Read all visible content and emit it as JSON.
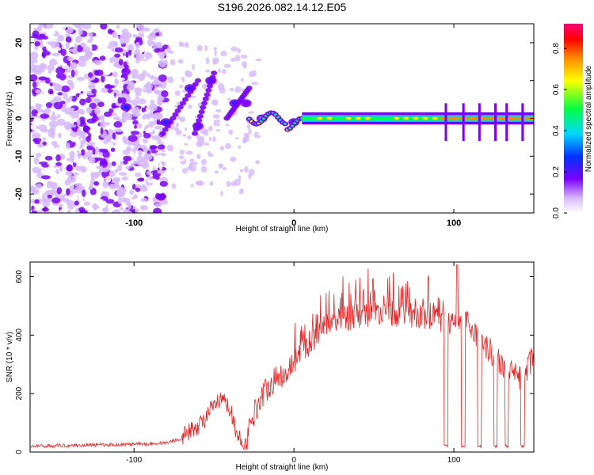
{
  "title": "S196.2026.082.14.12.E05",
  "chart_data": [
    {
      "type": "heatmap",
      "name": "spectrogram",
      "xlabel": "Height of straight line (km)",
      "ylabel": "Frequency (Hz)",
      "xlim": [
        -165,
        150
      ],
      "ylim": [
        -25,
        25
      ],
      "xticks": [
        -100,
        0,
        100
      ],
      "xtick_labels": [
        "-100",
        "0",
        "100"
      ],
      "yticks": [
        20,
        10,
        0,
        -10,
        -20
      ],
      "ytick_labels": [
        "20",
        "10",
        "0",
        "-10",
        "-20"
      ],
      "description_points": [
        {
          "x": -105,
          "y": 3,
          "amp": 0.35
        },
        {
          "x": -80,
          "y": -1,
          "amp": 0.35
        },
        {
          "x": -65,
          "y": 8,
          "amp": 0.35
        },
        {
          "x": -60,
          "y": -2,
          "amp": 0.4
        },
        {
          "x": -52,
          "y": 10,
          "amp": 0.3
        },
        {
          "x": -37,
          "y": 4,
          "amp": 0.3
        },
        {
          "x": -30,
          "y": 4,
          "amp": 0.25
        },
        {
          "x": -20,
          "y": 0,
          "amp": 0.5
        },
        {
          "x": 0,
          "y": -1,
          "amp": 0.4
        },
        {
          "x": 50,
          "y": 0,
          "amp": 0.8
        },
        {
          "x": 100,
          "y": 0,
          "amp": 0.85
        },
        {
          "x": 140,
          "y": 0,
          "amp": 0.85
        }
      ],
      "colorbar": {
        "label": "Normalized spectral amplitude",
        "range": [
          0,
          0.92
        ],
        "ticks": [
          0,
          0.2,
          0.4,
          0.6,
          0.8
        ],
        "tick_labels": [
          "0.0",
          "0.2",
          "0.4",
          "0.6",
          "0.8"
        ]
      }
    },
    {
      "type": "line",
      "name": "snr",
      "xlabel": "Height of straight line (km)",
      "ylabel": "SNR (10 * v/v)",
      "xlim": [
        -165,
        150
      ],
      "ylim": [
        0,
        650
      ],
      "xticks": [
        -100,
        0,
        100
      ],
      "xtick_labels": [
        "-100",
        "0",
        "100"
      ],
      "yticks": [
        0,
        200,
        400,
        600
      ],
      "ytick_labels": [
        "0",
        "200",
        "400",
        "600"
      ],
      "color": "#ee2222",
      "series": [
        {
          "name": "SNR",
          "x": [
            -165,
            -150,
            -130,
            -110,
            -90,
            -80,
            -70,
            -60,
            -55,
            -50,
            -45,
            -40,
            -35,
            -30,
            -25,
            -20,
            -15,
            -10,
            -5,
            0,
            5,
            10,
            15,
            20,
            30,
            40,
            50,
            60,
            70,
            80,
            90,
            95,
            100,
            105,
            110,
            115,
            120,
            125,
            130,
            135,
            140,
            145,
            150
          ],
          "values": [
            18,
            20,
            22,
            24,
            26,
            30,
            45,
            80,
            110,
            150,
            170,
            140,
            40,
            20,
            120,
            180,
            220,
            240,
            260,
            300,
            330,
            360,
            390,
            420,
            440,
            450,
            455,
            460,
            455,
            450,
            440,
            430,
            440,
            450,
            420,
            380,
            350,
            320,
            290,
            260,
            240,
            260,
            320
          ]
        }
      ],
      "dropouts": [
        {
          "x": 95,
          "value": 15
        },
        {
          "x": 106,
          "value": 15
        },
        {
          "x": 116,
          "value": 15
        },
        {
          "x": 126,
          "value": 15
        },
        {
          "x": 133,
          "value": 15
        },
        {
          "x": 143,
          "value": 15
        }
      ],
      "peak": {
        "x": 102,
        "value": 640
      }
    }
  ]
}
